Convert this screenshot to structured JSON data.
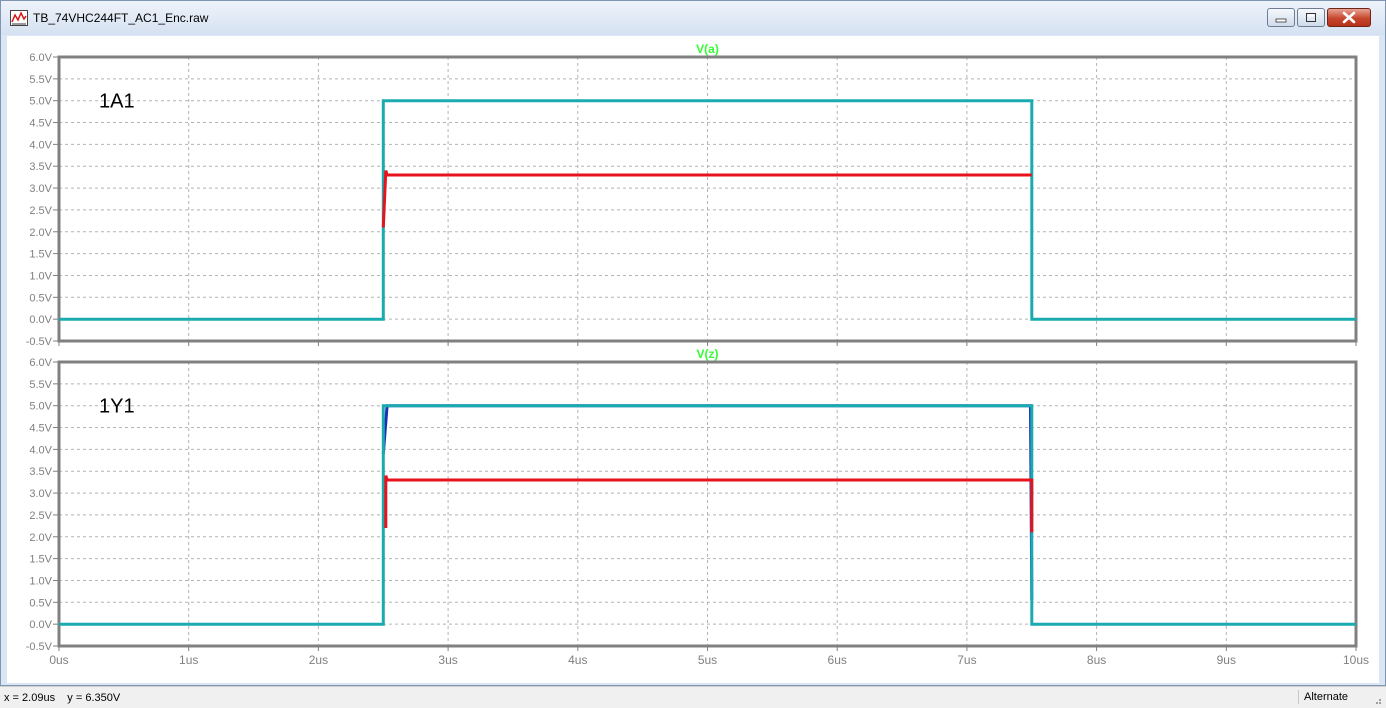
{
  "window": {
    "title": "TB_74VHC244FT_AC1_Enc.raw"
  },
  "status": {
    "cursor": "x = 2.09us    y = 6.350V",
    "mode": "Alternate"
  },
  "colors": {
    "grid": "#b4b4b4",
    "frame": "#808080",
    "tick_text": "#808080",
    "title_text": "#33ff33",
    "trace_main": "#1aabb0",
    "trace_secondary": "#e8121d",
    "trace_tertiary": "#1b2fb5"
  },
  "chart_data": [
    {
      "type": "line",
      "title": "V(a)",
      "annotation": "1A1",
      "xlabel": "",
      "ylabel": "",
      "x_ticks": [
        "0us",
        "1us",
        "2us",
        "3us",
        "4us",
        "5us",
        "6us",
        "7us",
        "8us",
        "9us",
        "10us"
      ],
      "y_ticks": [
        "-0.5V",
        "0.0V",
        "0.5V",
        "1.0V",
        "1.5V",
        "2.0V",
        "2.5V",
        "3.0V",
        "3.5V",
        "4.0V",
        "4.5V",
        "5.0V",
        "5.5V",
        "6.0V"
      ],
      "xlim": [
        0,
        10
      ],
      "ylim": [
        -0.5,
        6.0
      ],
      "grid": true,
      "series": [
        {
          "x": [
            0,
            2.5,
            2.5,
            7.5,
            7.5,
            10
          ],
          "y": [
            0,
            0,
            5.0,
            5.0,
            0,
            0
          ],
          "color": "trace_main",
          "width": 3
        },
        {
          "x": [
            2.5,
            2.52,
            2.53,
            7.5
          ],
          "y": [
            2.1,
            3.4,
            3.3,
            3.3
          ],
          "color": "trace_secondary",
          "width": 3
        }
      ]
    },
    {
      "type": "line",
      "title": "V(z)",
      "annotation": "1Y1",
      "xlabel": "",
      "ylabel": "",
      "x_ticks": [
        "0us",
        "1us",
        "2us",
        "3us",
        "4us",
        "5us",
        "6us",
        "7us",
        "8us",
        "9us",
        "10us"
      ],
      "y_ticks": [
        "-0.5V",
        "0.0V",
        "0.5V",
        "1.0V",
        "1.5V",
        "2.0V",
        "2.5V",
        "3.0V",
        "3.5V",
        "4.0V",
        "4.5V",
        "5.0V",
        "5.5V",
        "6.0V"
      ],
      "xlim": [
        0,
        10
      ],
      "ylim": [
        -0.5,
        6.0
      ],
      "grid": true,
      "series": [
        {
          "x": [
            2.5,
            2.53,
            7.49,
            7.5
          ],
          "y": [
            3.9,
            5.0,
            5.0,
            0.55
          ],
          "color": "trace_tertiary",
          "width": 3
        },
        {
          "x": [
            0,
            2.5,
            2.5,
            7.5,
            7.5,
            10
          ],
          "y": [
            0,
            0,
            5.0,
            5.0,
            0,
            0
          ],
          "color": "trace_main",
          "width": 3
        },
        {
          "x": [
            2.52,
            2.52,
            2.53,
            7.5,
            7.5
          ],
          "y": [
            2.2,
            3.4,
            3.3,
            3.3,
            2.1
          ],
          "color": "trace_secondary",
          "width": 3
        }
      ]
    }
  ]
}
